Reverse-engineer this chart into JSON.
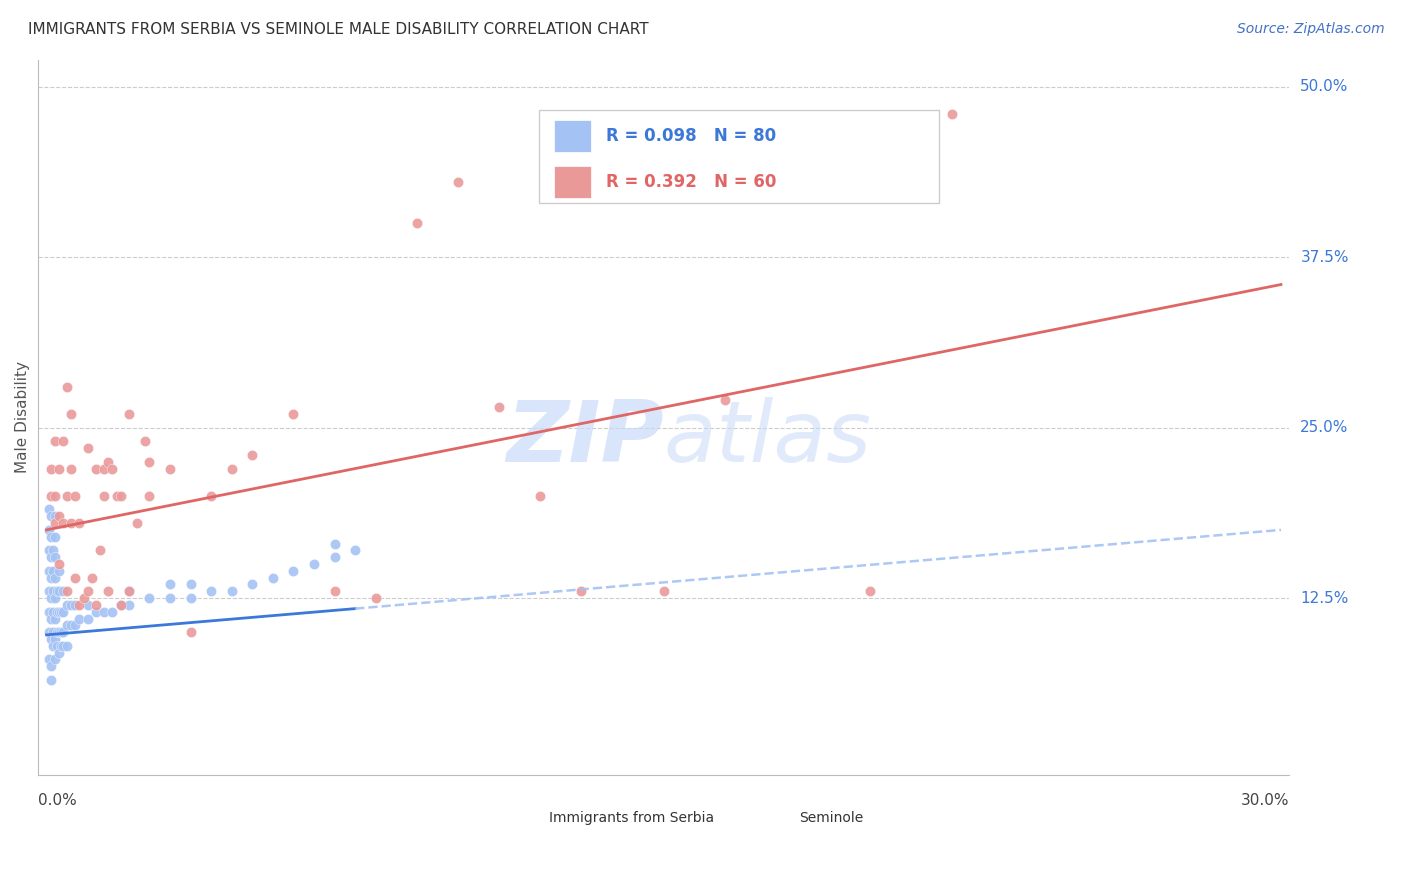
{
  "title": "IMMIGRANTS FROM SERBIA VS SEMINOLE MALE DISABILITY CORRELATION CHART",
  "source": "Source: ZipAtlas.com",
  "ylabel": "Male Disability",
  "series1_color": "#a4c2f4",
  "series2_color": "#ea9999",
  "line1_color": "#3c78d8",
  "line2_color": "#e06666",
  "dash_color": "#a4c2f4",
  "watermark_color": "#c9daf8",
  "ylim": [
    0.0,
    0.52
  ],
  "xlim": [
    0.0,
    0.3
  ],
  "ytick_vals": [
    0.125,
    0.25,
    0.375,
    0.5
  ],
  "ytick_labels": [
    "12.5%",
    "25.0%",
    "37.5%",
    "50.0%"
  ],
  "xtick_left": "0.0%",
  "xtick_right": "30.0%",
  "legend_r1": "R = 0.098",
  "legend_n1": "N = 80",
  "legend_r2": "R = 0.392",
  "legend_n2": "N = 60",
  "bottom_legend1": "Immigrants from Serbia",
  "bottom_legend2": "Seminole"
}
